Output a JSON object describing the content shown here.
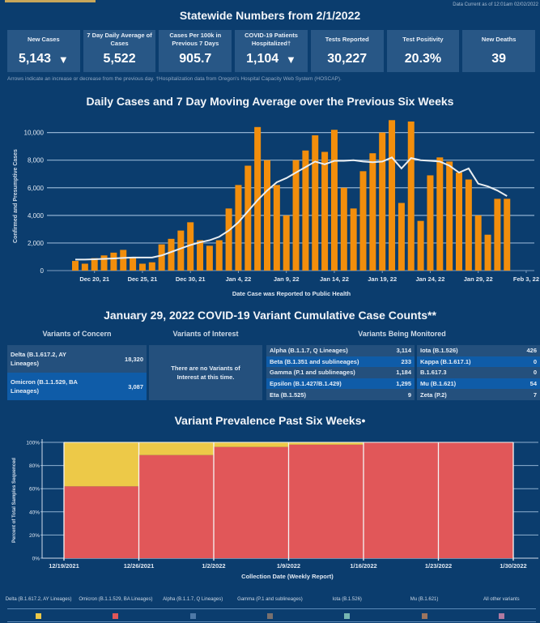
{
  "header": {
    "data_current": "Data Current as of 12:01am 02/02/2022",
    "title": "Statewide Numbers from 2/1/2022"
  },
  "stats": [
    {
      "label": "New Cases",
      "value": "5,143",
      "arrow": "▼"
    },
    {
      "label": "7 Day Daily Average of Cases",
      "value": "5,522",
      "arrow": ""
    },
    {
      "label": "Cases Per 100k in Previous 7 Days",
      "value": "905.7",
      "arrow": ""
    },
    {
      "label": "COVID-19 Patients Hospitalized†",
      "value": "1,104",
      "arrow": "▼"
    },
    {
      "label": "Tests Reported",
      "value": "30,227",
      "arrow": ""
    },
    {
      "label": "Test Positivity",
      "value": "20.3%",
      "arrow": ""
    },
    {
      "label": "New Deaths",
      "value": "39",
      "arrow": ""
    }
  ],
  "footnote": "Arrows indicate an increase or decrease from the previous day. †Hospitalization data from Oregon's Hospital Capacity Web System (HOSCAP).",
  "variants": {
    "title": "January 29, 2022 COVID-19 Variant Cumulative Case Counts**",
    "concern_heading": "Variants of Concern",
    "interest_heading": "Variants of Interest",
    "monitored_heading": "Variants Being Monitored",
    "concern": [
      {
        "name": "Delta (B.1.617.2, AY Lineages)",
        "count": "18,320"
      },
      {
        "name": "Omicron (B.1.1.529, BA Lineages)",
        "count": "3,087"
      }
    ],
    "interest_note": "There are no Variants of Interest at this time.",
    "monitored_left": [
      {
        "name": "Alpha (B.1.1.7, Q Lineages)",
        "count": "3,114"
      },
      {
        "name": "Beta (B.1.351 and sublineages)",
        "count": "233"
      },
      {
        "name": "Gamma (P.1 and sublineages)",
        "count": "1,184"
      },
      {
        "name": "Epsilon (B.1.427/B.1.429)",
        "count": "1,295"
      },
      {
        "name": "Eta (B.1.525)",
        "count": "9"
      }
    ],
    "monitored_right": [
      {
        "name": "Iota (B.1.526)",
        "count": "426"
      },
      {
        "name": "Kappa (B.1.617.1)",
        "count": "0"
      },
      {
        "name": "B.1.617.3",
        "count": "0"
      },
      {
        "name": "Mu (B.1.621)",
        "count": "54"
      },
      {
        "name": "Zeta (P.2)",
        "count": "7"
      }
    ]
  },
  "chart_data": [
    {
      "type": "bar",
      "title": "Daily Cases and 7 Day Moving Average over the Previous Six Weeks",
      "xlabel": "Date Case was Reported to Public Health",
      "ylabel": "Confirmed and Presumptive Cases",
      "ylim": [
        0,
        10800
      ],
      "yticks": [
        0,
        2000,
        4000,
        6000,
        8000,
        10000
      ],
      "ytick_labels": [
        "0",
        "2,000",
        "4,000",
        "6,000",
        "8,000",
        "10,000"
      ],
      "xtick_labels": [
        "Dec 20, 21",
        "Dec 25, 21",
        "Dec 30, 21",
        "Jan 4, 22",
        "Jan 9, 22",
        "Jan 14, 22",
        "Jan 19, 22",
        "Jan 24, 22",
        "Jan 29, 22",
        "Feb 3, 22"
      ],
      "xtick_day_index": [
        2,
        7,
        12,
        17,
        22,
        27,
        32,
        37,
        42,
        47
      ],
      "first_date": "Dec 18, 21",
      "grid": true,
      "series": [
        {
          "name": "Daily Cases",
          "type": "bar",
          "color": "#f28e0c",
          "values": [
            700,
            500,
            900,
            1100,
            1300,
            1500,
            1000,
            500,
            600,
            1900,
            2300,
            2900,
            3500,
            2200,
            1800,
            2200,
            4500,
            6200,
            7600,
            10400,
            8000,
            6200,
            4000,
            8000,
            8700,
            9800,
            8600,
            10200,
            6000,
            4500,
            7200,
            8500,
            10000,
            10900,
            4900,
            10800,
            3600,
            6900,
            8200,
            7900,
            7100,
            6600,
            4000,
            2600,
            5200,
            5200
          ]
        },
        {
          "name": "7 Day Moving Average",
          "type": "line",
          "color": "#e9eef2",
          "values": [
            800,
            800,
            820,
            850,
            880,
            920,
            950,
            950,
            950,
            1100,
            1350,
            1600,
            1850,
            2050,
            2200,
            2450,
            2900,
            3500,
            4300,
            5100,
            5800,
            6400,
            6700,
            7100,
            7500,
            7900,
            7700,
            7950,
            7950,
            8000,
            7900,
            7850,
            7900,
            8200,
            7400,
            8150,
            8000,
            7950,
            7900,
            7600,
            7100,
            7400,
            6300,
            6100,
            5800,
            5400
          ]
        }
      ]
    },
    {
      "type": "bar",
      "stacked": true,
      "title": "Variant Prevalence Past Six Weeks•",
      "xlabel": "Collection Date (Weekly Report)",
      "ylabel": "Percent of Total Samples Sequenced",
      "ylim": [
        0,
        100
      ],
      "yticks": [
        0,
        20,
        40,
        60,
        80,
        100
      ],
      "ytick_labels": [
        "0%",
        "20%",
        "40%",
        "60%",
        "80%",
        "100%"
      ],
      "xtick_labels": [
        "12/19/2021",
        "12/26/2021",
        "1/2/2022",
        "1/9/2022",
        "1/16/2022",
        "1/23/2022",
        "1/30/2022"
      ],
      "categories": [
        "12/19/2021",
        "12/26/2021",
        "1/2/2022",
        "1/9/2022",
        "1/16/2022",
        "1/23/2022"
      ],
      "series": [
        {
          "name": "Omicron (B.1.1.529, BA Lineages)",
          "color": "#e15759",
          "values": [
            62,
            89,
            96,
            98,
            100,
            100
          ]
        },
        {
          "name": "Delta (B.1.617.2, AY Lineages)",
          "color": "#edc948",
          "values": [
            38,
            11,
            4,
            2,
            0,
            0
          ]
        }
      ],
      "legend": [
        {
          "name": "Delta (B.1.617.2, AY Lineages)",
          "color": "#edc948"
        },
        {
          "name": "Omicron (B.1.1.529, BA Lineages)",
          "color": "#e15759"
        },
        {
          "name": "Alpha (B.1.1.7, Q Lineages)",
          "color": "#4e79a7"
        },
        {
          "name": "Gamma (P.1 and sublineages)",
          "color": "#79706e"
        },
        {
          "name": "Iota (B.1.526)",
          "color": "#76b7b2"
        },
        {
          "name": "Mu (B.1.621)",
          "color": "#9c755f"
        },
        {
          "name": "All other variants",
          "color": "#b07aa1"
        }
      ],
      "legend_position": "bottom"
    }
  ]
}
